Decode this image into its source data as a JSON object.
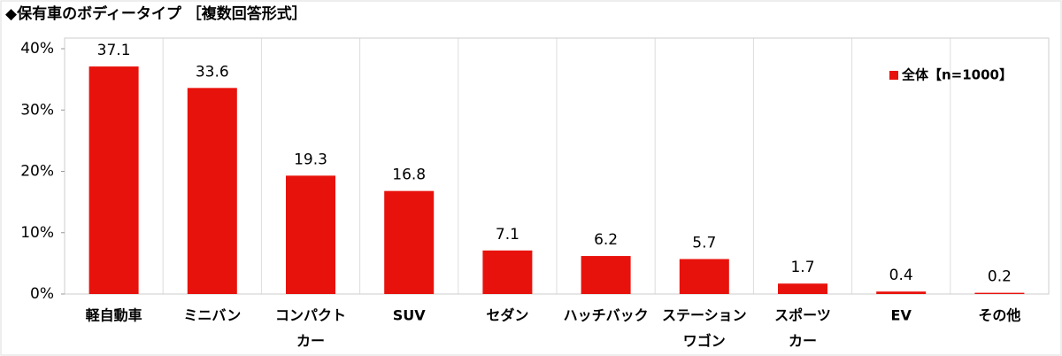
{
  "chart_data": {
    "type": "bar",
    "title": "◆保有車のボディータイプ ［複数回答形式］",
    "categories": [
      [
        "軽自動車"
      ],
      [
        "ミニバン"
      ],
      [
        "コンパクト",
        "カー"
      ],
      [
        "SUV"
      ],
      [
        "セダン"
      ],
      [
        "ハッチバック"
      ],
      [
        "ステーション",
        "ワゴン"
      ],
      [
        "スポーツ",
        "カー"
      ],
      [
        "EV"
      ],
      [
        "その他"
      ]
    ],
    "series": [
      {
        "name": "全体【n=1000】",
        "color": "#e8120c",
        "values": [
          37.1,
          33.6,
          19.3,
          16.8,
          7.1,
          6.2,
          5.7,
          1.7,
          0.4,
          0.2
        ]
      }
    ],
    "ylim": [
      0,
      40
    ],
    "yticks": [
      {
        "value": 0,
        "label": "0%"
      },
      {
        "value": 10,
        "label": "10%"
      },
      {
        "value": 20,
        "label": "20%"
      },
      {
        "value": 30,
        "label": "30%"
      },
      {
        "value": 40,
        "label": "40%"
      }
    ],
    "legend": "top-right",
    "grid": "vertical"
  }
}
